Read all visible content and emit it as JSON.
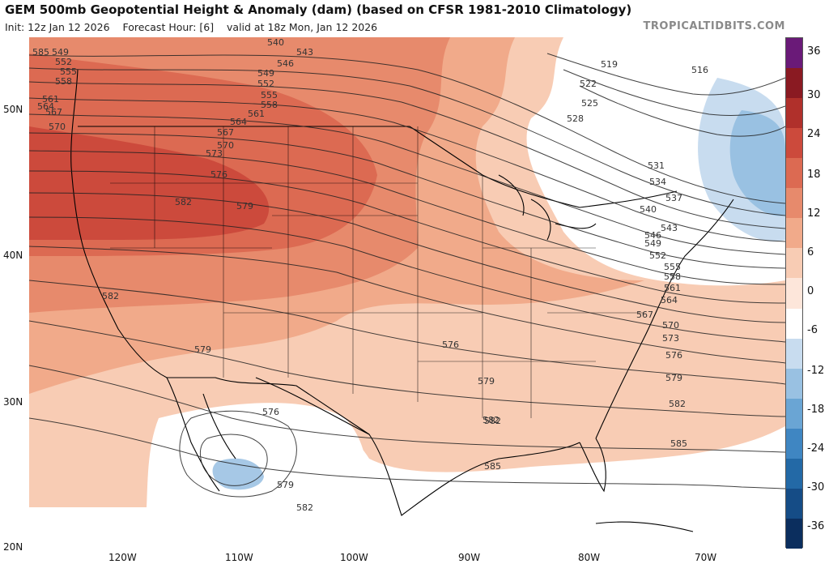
{
  "header": {
    "title": "GEM 500mb Geopotential Height & Anomaly (dam) (based on CFSR 1981-2010 Climatology)",
    "init": "Init: 12z Jan 12 2026",
    "forecast_hour": "Forecast Hour: [6]",
    "valid": "valid at 18z Mon, Jan 12 2026",
    "brand": "TROPICALTIDBITS.COM"
  },
  "axes": {
    "lat_labels": [
      "50N",
      "40N",
      "30N",
      "20N"
    ],
    "lon_labels": [
      "120W",
      "110W",
      "100W",
      "90W",
      "80W",
      "70W"
    ]
  },
  "colorbar": {
    "labels": [
      "36",
      "30",
      "24",
      "18",
      "12",
      "6",
      "0",
      "-6",
      "-12",
      "-18",
      "-24",
      "-30",
      "-36"
    ],
    "colors": [
      "#6a1a78",
      "#8a1a22",
      "#b0302b",
      "#cc4a3c",
      "#dc6a52",
      "#e78a6c",
      "#f1aa8a",
      "#f8ccb4",
      "#fde6da",
      "#ffffff",
      "#c8dcef",
      "#99c1e2",
      "#6aa5d4",
      "#3f86c2",
      "#2369a6",
      "#154c86",
      "#0b2e5e"
    ]
  },
  "contours": {
    "labels": [
      "540",
      "543",
      "546",
      "549",
      "552",
      "555",
      "558",
      "561",
      "564",
      "567",
      "570",
      "573",
      "576",
      "579",
      "582",
      "585",
      "549",
      "552",
      "555",
      "558",
      "561",
      "564",
      "567",
      "570",
      "519",
      "516",
      "522",
      "525",
      "528",
      "531",
      "534",
      "537",
      "540",
      "543",
      "546",
      "549",
      "552",
      "555",
      "558",
      "561",
      "564",
      "567",
      "570",
      "573",
      "576",
      "579",
      "582",
      "585",
      "582",
      "579",
      "576",
      "579",
      "582",
      "576",
      "579",
      "582",
      "582",
      "585"
    ]
  }
}
